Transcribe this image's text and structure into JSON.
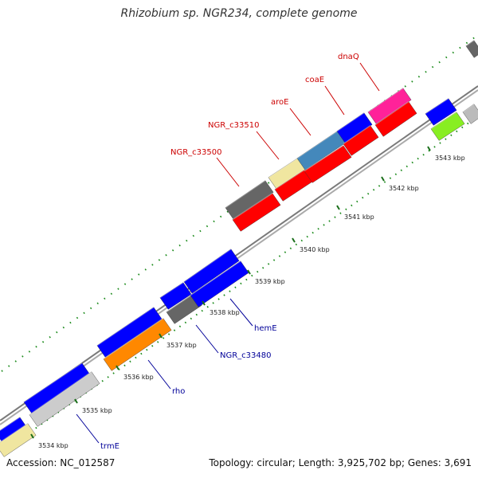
{
  "title": "Rhizobium sp. NGR234, complete genome",
  "footer": {
    "accession": "Accession: NC_012587",
    "info": "Topology: circular; Length: 3,925,702 bp; Genes: 3,691"
  },
  "colors": {
    "backbone": "#8a8a8a",
    "tick_major": "#1a6e1a",
    "tick_minor": "#1a8a1a",
    "label_forward": "#cc0000",
    "label_reverse": "#000099"
  },
  "ticks": [
    {
      "label": "3534 kbp"
    },
    {
      "label": "3535 kbp"
    },
    {
      "label": "3536 kbp"
    },
    {
      "label": "3537 kbp"
    },
    {
      "label": "3538 kbp"
    },
    {
      "label": "3539 kbp"
    },
    {
      "label": "3540 kbp"
    },
    {
      "label": "3541 kbp"
    },
    {
      "label": "3542 kbp"
    },
    {
      "label": "3543 kbp"
    }
  ],
  "labels_forward": [
    {
      "text": "NGR_c33500"
    },
    {
      "text": "NGR_c33510"
    },
    {
      "text": "aroE"
    },
    {
      "text": "coaE"
    },
    {
      "text": "dnaQ"
    }
  ],
  "labels_reverse": [
    {
      "text": "trmE"
    },
    {
      "text": "rho"
    },
    {
      "text": "NGR_c33480"
    },
    {
      "text": "hemE"
    }
  ]
}
